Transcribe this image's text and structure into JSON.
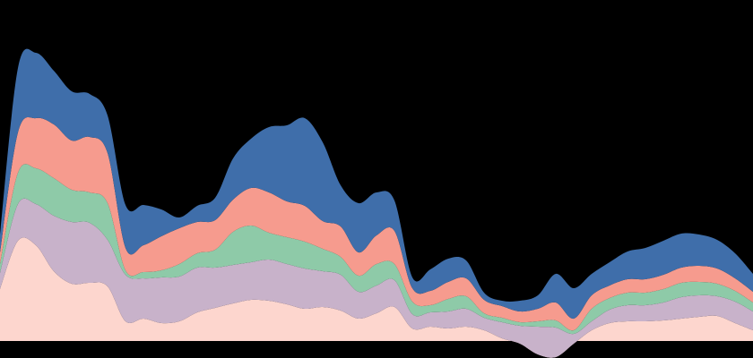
{
  "chart_data": {
    "type": "area",
    "stacked": true,
    "smooth": true,
    "axes_visible": false,
    "grid": false,
    "legend": "none",
    "background": "#000000",
    "x": [
      0,
      1,
      2,
      3,
      4,
      5,
      6,
      7,
      8,
      9,
      10,
      11,
      12,
      13,
      14,
      15,
      16,
      17,
      18,
      19,
      20,
      21,
      22,
      23,
      24,
      25,
      26,
      27,
      28,
      29,
      30,
      31,
      32,
      33,
      34,
      35,
      36,
      37,
      38,
      39,
      40,
      41,
      42
    ],
    "ylim": [
      -25,
      400
    ],
    "series": [
      {
        "color": "#FDD6CE",
        "values": [
          58,
          112,
          107,
          78,
          64,
          65,
          61,
          22,
          25,
          20,
          22,
          32,
          37,
          42,
          46,
          45,
          41,
          36,
          38,
          34,
          25,
          31,
          38,
          14,
          16,
          14,
          16,
          12,
          3,
          -3,
          -15,
          -18,
          -3,
          12,
          20,
          22,
          22,
          23,
          25,
          27,
          28,
          20,
          12
        ]
      },
      {
        "color": "#C8B2CA",
        "values": [
          18,
          41,
          46,
          62,
          69,
          67,
          52,
          52,
          45,
          51,
          50,
          50,
          45,
          43,
          42,
          46,
          45,
          45,
          40,
          40,
          30,
          31,
          30,
          16,
          16,
          19,
          20,
          14,
          18,
          20,
          31,
          33,
          11,
          10,
          15,
          18,
          18,
          20,
          24,
          24,
          22,
          24,
          21
        ]
      },
      {
        "color": "#8ECAA8",
        "values": [
          10,
          35,
          40,
          42,
          36,
          34,
          41,
          5,
          7,
          8,
          14,
          16,
          20,
          37,
          41,
          30,
          30,
          30,
          25,
          20,
          18,
          24,
          18,
          14,
          8,
          14,
          14,
          5,
          5,
          4,
          6,
          8,
          4,
          14,
          13,
          14,
          14,
          15,
          16,
          15,
          14,
          12,
          10
        ]
      },
      {
        "color": "#F69B8E",
        "values": [
          13,
          45,
          56,
          60,
          55,
          62,
          56,
          25,
          30,
          38,
          40,
          35,
          33,
          36,
          42,
          45,
          40,
          40,
          31,
          34,
          26,
          32,
          37,
          15,
          16,
          19,
          20,
          15,
          13,
          12,
          14,
          20,
          13,
          15,
          14,
          15,
          15,
          16,
          17,
          18,
          17,
          14,
          12
        ]
      },
      {
        "color": "#3F6EAA",
        "values": [
          20,
          72,
          73,
          60,
          55,
          48,
          42,
          48,
          45,
          30,
          12,
          18,
          25,
          46,
          55,
          73,
          85,
          98,
          88,
          46,
          55,
          48,
          34,
          12,
          24,
          26,
          20,
          8,
          6,
          12,
          15,
          32,
          34,
          24,
          26,
          31,
          35,
          38,
          38,
          35,
          32,
          28,
          20
        ]
      }
    ]
  }
}
